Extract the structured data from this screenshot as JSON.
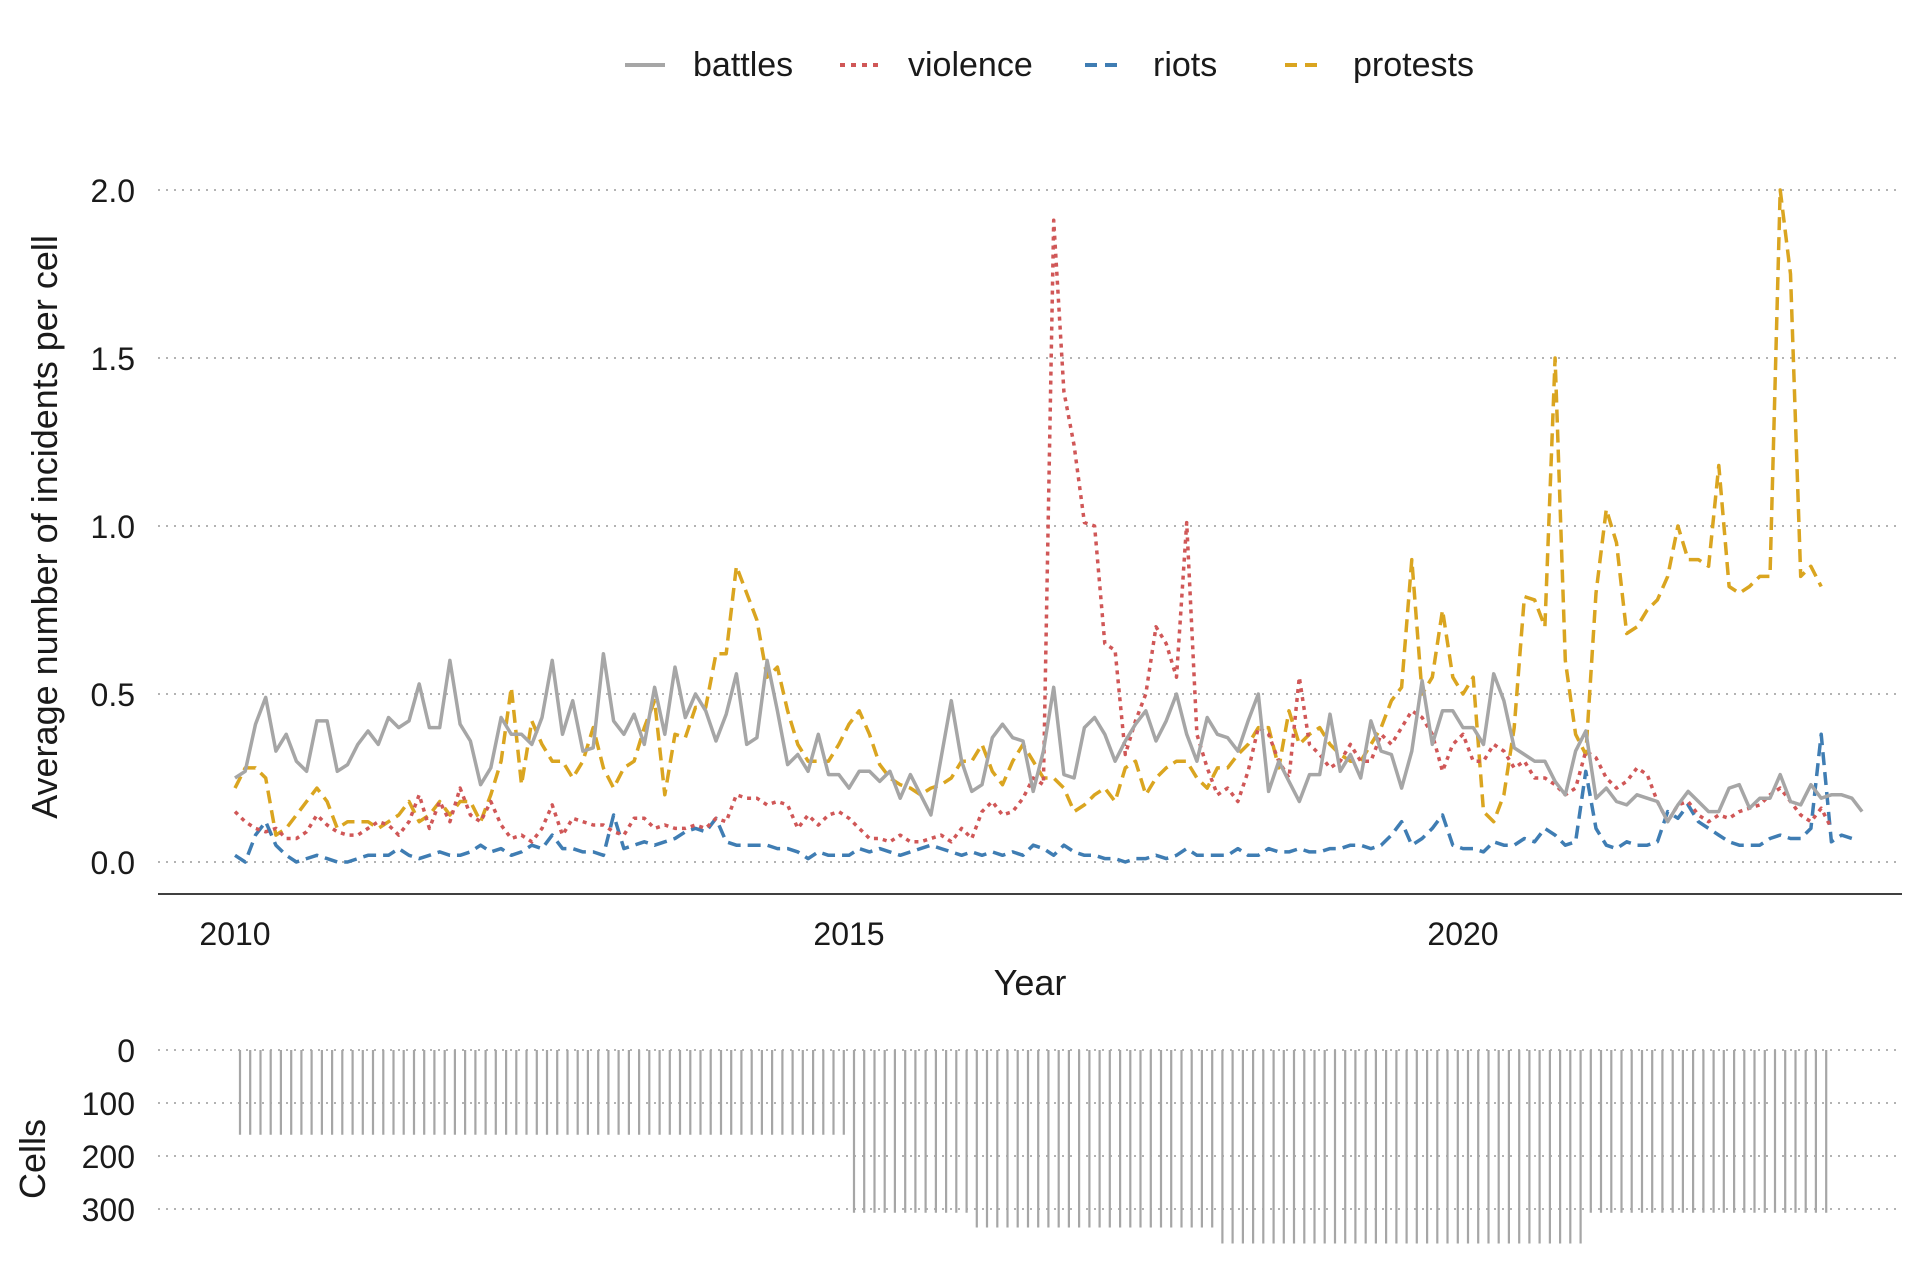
{
  "chart_data": [
    {
      "type": "line",
      "title": "",
      "xlabel": "Year",
      "ylabel": "Average number of incidents per cell",
      "xlim": [
        2009.75,
        2023.5
      ],
      "ylim": [
        -0.1,
        2.1
      ],
      "x_ticks": [
        2010,
        2015,
        2020
      ],
      "x_tick_labels": [
        "2010",
        "2015",
        "2020"
      ],
      "y_ticks": [
        0.0,
        0.5,
        1.0,
        1.5,
        2.0
      ],
      "y_tick_labels": [
        "0.0",
        "0.5",
        "1.0",
        "1.5",
        "2.0"
      ],
      "grid": "horizontal dotted",
      "legend_position": "top",
      "x_start": 2010.0,
      "x_step_months": 1,
      "series": [
        {
          "name": "battles",
          "color": "#a6a6a6",
          "dash": "solid",
          "values": [
            0.25,
            0.27,
            0.41,
            0.49,
            0.33,
            0.38,
            0.3,
            0.27,
            0.42,
            0.42,
            0.27,
            0.29,
            0.35,
            0.39,
            0.35,
            0.43,
            0.4,
            0.42,
            0.53,
            0.4,
            0.4,
            0.6,
            0.41,
            0.36,
            0.23,
            0.28,
            0.43,
            0.38,
            0.38,
            0.35,
            0.43,
            0.6,
            0.38,
            0.48,
            0.33,
            0.34,
            0.62,
            0.42,
            0.38,
            0.44,
            0.35,
            0.52,
            0.38,
            0.58,
            0.43,
            0.5,
            0.45,
            0.36,
            0.44,
            0.56,
            0.35,
            0.37,
            0.6,
            0.45,
            0.29,
            0.32,
            0.27,
            0.38,
            0.26,
            0.26,
            0.22,
            0.27,
            0.27,
            0.24,
            0.27,
            0.19,
            0.26,
            0.2,
            0.14,
            0.31,
            0.48,
            0.3,
            0.21,
            0.23,
            0.37,
            0.41,
            0.37,
            0.36,
            0.21,
            0.33,
            0.52,
            0.26,
            0.25,
            0.4,
            0.43,
            0.38,
            0.3,
            0.36,
            0.41,
            0.45,
            0.36,
            0.42,
            0.5,
            0.38,
            0.3,
            0.43,
            0.38,
            0.37,
            0.33,
            0.42,
            0.5,
            0.21,
            0.3,
            0.24,
            0.18,
            0.26,
            0.26,
            0.44,
            0.27,
            0.32,
            0.25,
            0.42,
            0.33,
            0.32,
            0.22,
            0.33,
            0.54,
            0.35,
            0.45,
            0.45,
            0.4,
            0.4,
            0.35,
            0.56,
            0.48,
            0.34,
            0.32,
            0.3,
            0.3,
            0.24,
            0.2,
            0.33,
            0.39,
            0.19,
            0.22,
            0.18,
            0.17,
            0.2,
            0.19,
            0.18,
            0.12,
            0.17,
            0.21,
            0.18,
            0.15,
            0.15,
            0.22,
            0.23,
            0.16,
            0.19,
            0.19,
            0.26,
            0.18,
            0.17,
            0.23,
            0.19,
            0.2,
            0.2,
            0.19,
            0.15
          ]
        },
        {
          "name": "violence",
          "color": "#d05757",
          "dash": "dotted",
          "values": [
            0.15,
            0.12,
            0.1,
            0.09,
            0.1,
            0.07,
            0.07,
            0.09,
            0.14,
            0.11,
            0.09,
            0.08,
            0.08,
            0.1,
            0.12,
            0.11,
            0.08,
            0.12,
            0.2,
            0.1,
            0.18,
            0.12,
            0.22,
            0.14,
            0.12,
            0.18,
            0.11,
            0.07,
            0.08,
            0.06,
            0.1,
            0.17,
            0.08,
            0.13,
            0.12,
            0.11,
            0.11,
            0.09,
            0.08,
            0.13,
            0.13,
            0.1,
            0.11,
            0.1,
            0.1,
            0.11,
            0.1,
            0.13,
            0.12,
            0.2,
            0.19,
            0.19,
            0.17,
            0.18,
            0.17,
            0.1,
            0.14,
            0.11,
            0.14,
            0.15,
            0.13,
            0.1,
            0.07,
            0.07,
            0.06,
            0.08,
            0.06,
            0.06,
            0.07,
            0.08,
            0.06,
            0.1,
            0.07,
            0.15,
            0.18,
            0.14,
            0.15,
            0.19,
            0.25,
            0.23,
            1.91,
            1.4,
            1.24,
            1.01,
            1.0,
            0.65,
            0.63,
            0.32,
            0.42,
            0.5,
            0.7,
            0.65,
            0.55,
            1.01,
            0.38,
            0.28,
            0.2,
            0.22,
            0.18,
            0.27,
            0.4,
            0.38,
            0.3,
            0.25,
            0.55,
            0.35,
            0.32,
            0.28,
            0.3,
            0.35,
            0.3,
            0.3,
            0.38,
            0.35,
            0.4,
            0.45,
            0.43,
            0.38,
            0.27,
            0.35,
            0.38,
            0.3,
            0.3,
            0.35,
            0.33,
            0.28,
            0.3,
            0.25,
            0.25,
            0.23,
            0.2,
            0.22,
            0.33,
            0.31,
            0.25,
            0.22,
            0.24,
            0.28,
            0.26,
            0.18,
            0.12,
            0.17,
            0.18,
            0.14,
            0.12,
            0.14,
            0.13,
            0.15,
            0.16,
            0.17,
            0.2,
            0.22,
            0.18,
            0.14,
            0.12,
            0.16,
            0.1
          ]
        },
        {
          "name": "riots",
          "color": "#3f7db3",
          "dash": "dashed",
          "values": [
            0.02,
            0.0,
            0.08,
            0.12,
            0.05,
            0.02,
            0.0,
            0.01,
            0.02,
            0.01,
            0.0,
            0.0,
            0.01,
            0.02,
            0.02,
            0.02,
            0.04,
            0.02,
            0.01,
            0.02,
            0.03,
            0.02,
            0.02,
            0.03,
            0.05,
            0.03,
            0.04,
            0.02,
            0.03,
            0.05,
            0.04,
            0.08,
            0.04,
            0.04,
            0.03,
            0.03,
            0.02,
            0.14,
            0.04,
            0.05,
            0.06,
            0.05,
            0.06,
            0.07,
            0.09,
            0.1,
            0.09,
            0.13,
            0.06,
            0.05,
            0.05,
            0.05,
            0.05,
            0.04,
            0.04,
            0.03,
            0.01,
            0.03,
            0.02,
            0.02,
            0.02,
            0.04,
            0.03,
            0.04,
            0.03,
            0.02,
            0.03,
            0.04,
            0.05,
            0.04,
            0.03,
            0.02,
            0.03,
            0.02,
            0.03,
            0.02,
            0.03,
            0.02,
            0.05,
            0.04,
            0.02,
            0.05,
            0.03,
            0.02,
            0.02,
            0.01,
            0.01,
            0.0,
            0.01,
            0.01,
            0.02,
            0.01,
            0.02,
            0.04,
            0.02,
            0.02,
            0.02,
            0.02,
            0.04,
            0.02,
            0.02,
            0.04,
            0.03,
            0.03,
            0.04,
            0.03,
            0.03,
            0.04,
            0.04,
            0.05,
            0.05,
            0.04,
            0.05,
            0.08,
            0.12,
            0.05,
            0.07,
            0.1,
            0.14,
            0.05,
            0.04,
            0.04,
            0.03,
            0.06,
            0.05,
            0.05,
            0.07,
            0.06,
            0.1,
            0.08,
            0.05,
            0.06,
            0.27,
            0.1,
            0.05,
            0.04,
            0.06,
            0.05,
            0.05,
            0.06,
            0.15,
            0.13,
            0.17,
            0.12,
            0.1,
            0.08,
            0.06,
            0.05,
            0.05,
            0.05,
            0.07,
            0.08,
            0.07,
            0.07,
            0.1,
            0.38,
            0.06,
            0.08,
            0.07
          ]
        },
        {
          "name": "protests",
          "color": "#daa520",
          "dash": "dashed",
          "values": [
            0.22,
            0.28,
            0.28,
            0.25,
            0.08,
            0.1,
            0.14,
            0.18,
            0.22,
            0.18,
            0.1,
            0.12,
            0.12,
            0.12,
            0.1,
            0.12,
            0.14,
            0.18,
            0.12,
            0.14,
            0.18,
            0.14,
            0.18,
            0.18,
            0.12,
            0.2,
            0.3,
            0.52,
            0.23,
            0.42,
            0.35,
            0.3,
            0.3,
            0.25,
            0.3,
            0.4,
            0.28,
            0.22,
            0.28,
            0.3,
            0.4,
            0.48,
            0.2,
            0.38,
            0.37,
            0.46,
            0.46,
            0.62,
            0.62,
            0.88,
            0.8,
            0.72,
            0.55,
            0.58,
            0.45,
            0.35,
            0.3,
            0.3,
            0.3,
            0.35,
            0.41,
            0.45,
            0.38,
            0.29,
            0.25,
            0.23,
            0.22,
            0.2,
            0.22,
            0.23,
            0.25,
            0.3,
            0.3,
            0.35,
            0.27,
            0.23,
            0.3,
            0.35,
            0.3,
            0.25,
            0.25,
            0.22,
            0.15,
            0.17,
            0.2,
            0.22,
            0.18,
            0.28,
            0.3,
            0.2,
            0.25,
            0.28,
            0.3,
            0.3,
            0.25,
            0.22,
            0.28,
            0.28,
            0.32,
            0.35,
            0.4,
            0.4,
            0.28,
            0.45,
            0.35,
            0.38,
            0.4,
            0.35,
            0.32,
            0.3,
            0.3,
            0.35,
            0.4,
            0.48,
            0.52,
            0.9,
            0.5,
            0.55,
            0.75,
            0.55,
            0.5,
            0.55,
            0.15,
            0.12,
            0.2,
            0.4,
            0.79,
            0.78,
            0.7,
            1.5,
            0.6,
            0.38,
            0.32,
            0.8,
            1.05,
            0.95,
            0.68,
            0.7,
            0.75,
            0.78,
            0.85,
            1.0,
            0.9,
            0.9,
            0.88,
            1.18,
            0.82,
            0.8,
            0.82,
            0.85,
            0.85,
            2.0,
            1.75,
            0.85,
            0.88,
            0.82
          ]
        }
      ]
    },
    {
      "type": "bar",
      "ylabel": "Cells",
      "ylim": [
        0,
        300
      ],
      "y_ticks": [
        0,
        100,
        200,
        300
      ],
      "y_tick_labels": [
        "0",
        "100",
        "200",
        "300"
      ],
      "grid": "horizontal dotted",
      "color": "#a6a6a6",
      "x_start": 2010.0,
      "x_step_months": 1,
      "segments": [
        {
          "months": 60,
          "cells": 160
        },
        {
          "months": 12,
          "cells": 307
        },
        {
          "months": 24,
          "cells": 335
        },
        {
          "months": 36,
          "cells": 365
        },
        {
          "months": 24,
          "cells": 307
        }
      ]
    }
  ]
}
